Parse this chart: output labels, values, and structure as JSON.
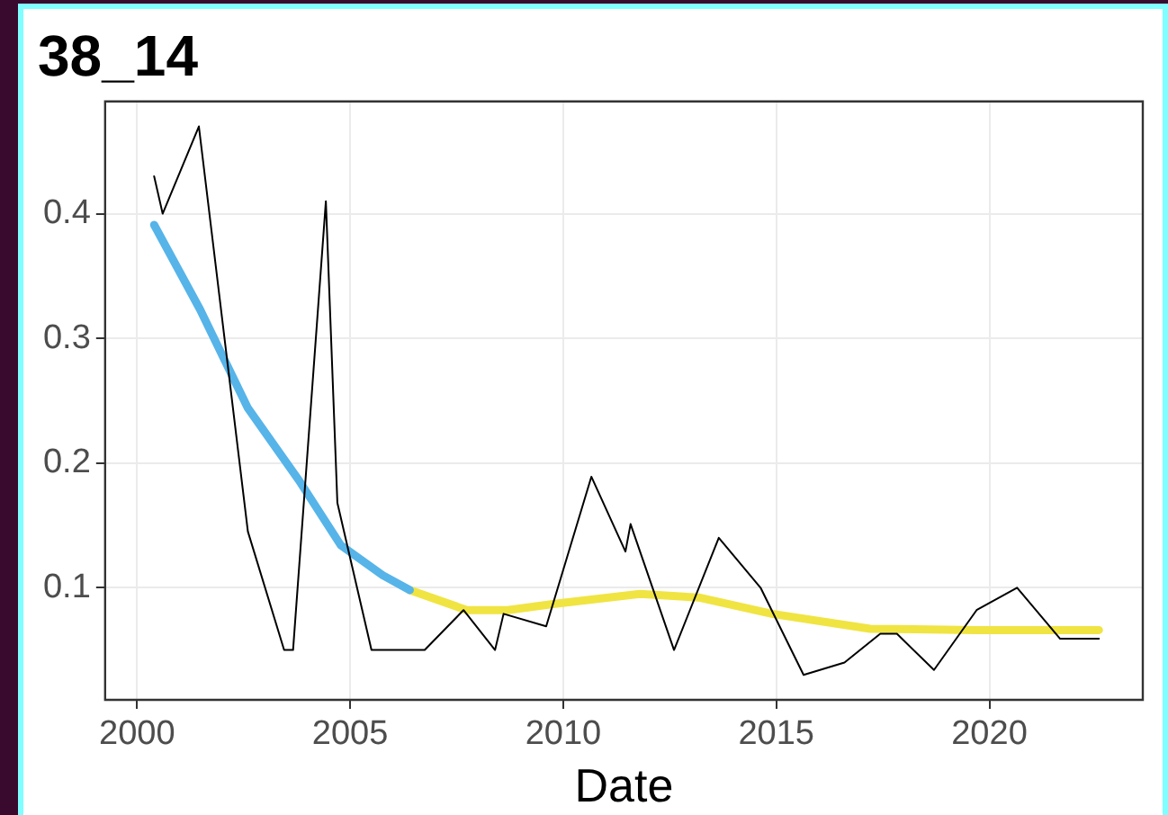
{
  "chart_data": {
    "type": "line",
    "title": "38_14",
    "xlabel": "Date",
    "xlim": [
      1999.25,
      2023.6
    ],
    "xticks": [
      2000,
      2005,
      2010,
      2015,
      2020
    ],
    "ylim": [
      0.01,
      0.49
    ],
    "yticks": [
      0.1,
      0.2,
      0.3,
      0.4
    ],
    "grid": true,
    "legend": false,
    "marker": "none",
    "series": [
      {
        "color": "#000000",
        "x": [
          2000.4,
          2000.6,
          2001.45,
          2002.6,
          2003.45,
          2003.66,
          2004.43,
          2004.7,
          2005.5,
          2006.75,
          2007.66,
          2008.4,
          2008.6,
          2009.6,
          2010.66,
          2011.46,
          2011.58,
          2012.6,
          2013.65,
          2014.63,
          2015.64,
          2016.6,
          2017.44,
          2017.83,
          2018.7,
          2019.7,
          2020.65,
          2021.66,
          2022.57
        ],
        "values": [
          0.43,
          0.4,
          0.47,
          0.145,
          0.05,
          0.05,
          0.41,
          0.168,
          0.05,
          0.05,
          0.082,
          0.05,
          0.079,
          0.069,
          0.189,
          0.129,
          0.151,
          0.05,
          0.14,
          0.1,
          0.03,
          0.04,
          0.063,
          0.063,
          0.034,
          0.082,
          0.1,
          0.059,
          0.059
        ]
      },
      {
        "color": "#56b4e9",
        "x": [
          2000.4,
          2001.48,
          2002.6,
          2003.8,
          2004.78,
          2005.76,
          2006.4
        ],
        "values": [
          0.391,
          0.323,
          0.244,
          0.186,
          0.134,
          0.11,
          0.098
        ]
      },
      {
        "color": "#f0e442",
        "x": [
          2006.4,
          2007.74,
          2008.7,
          2009.8,
          2011.8,
          2013.2,
          2014.9,
          2017.2,
          2019.7,
          2022.57
        ],
        "values": [
          0.098,
          0.082,
          0.082,
          0.087,
          0.095,
          0.092,
          0.079,
          0.067,
          0.066,
          0.066
        ]
      }
    ]
  }
}
